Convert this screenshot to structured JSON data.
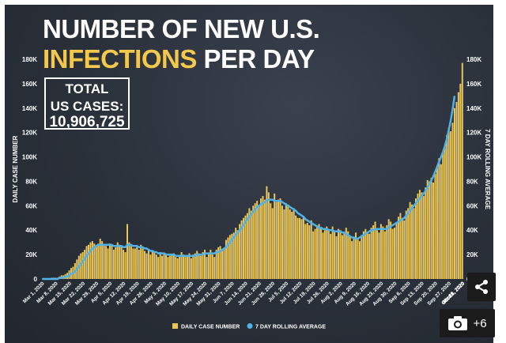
{
  "title": {
    "line1": "NUMBER OF NEW U.S.",
    "line2_highlight": "INFECTIONS",
    "line2_rest": "PER DAY"
  },
  "total_box": {
    "label_line1": "TOTAL",
    "label_line2": "US CASES:",
    "value": "10,906,725"
  },
  "controls": {
    "share_icon": "share-icon",
    "gallery_icon": "camera-icon",
    "gallery_count": "+6"
  },
  "colors": {
    "bars": "#e8c55a",
    "line": "#4fb3e8",
    "background": "#2a3039",
    "highlight": "#f2c94c"
  },
  "chart_data": {
    "type": "bar",
    "ylabel_left": "DAILY CASE NUMBER",
    "ylabel_right": "7 DAY ROLLING AVERAGE",
    "ylim": [
      0,
      180000
    ],
    "yticks": [
      "0",
      "20K",
      "40K",
      "60K",
      "80K",
      "100K",
      "120K",
      "140K",
      "160K",
      "180K"
    ],
    "xticks": [
      "Mar 1, 2020",
      "Mar 8, 2020",
      "Mar 15, 2020",
      "Mar 22, 2020",
      "Mar 29, 2020",
      "Apr 5, 2020",
      "Apr 12, 2020",
      "Apr 19, 2020",
      "Apr 26, 2020",
      "May 3, 2020",
      "May 10, 2020",
      "May 17, 2020",
      "May 24, 2020",
      "May 31, 2020",
      "Jun 7, 2020",
      "Jun 14, 2020",
      "Jun 21, 2020",
      "Jun 28, 2020",
      "Jul 5, 2020",
      "Jul 12, 2020",
      "Jul 19, 2020",
      "Jul 26, 2020",
      "Aug 2, 2020",
      "Aug 9, 2020",
      "Aug 16, 2020",
      "Aug 23, 2020",
      "Aug 30, 2020",
      "Sep 6, 2020",
      "Sep 13, 2020",
      "Sep 20, 2020",
      "Sep 27, 2020",
      "Oct 4, 2020",
      "Oct 11, 2020",
      "Oct 18, 2020",
      "Oct 25, 2020",
      "Nov 1, 2020",
      "Nov 8, 2020"
    ],
    "legend": [
      "DAILY CASE NUMBER",
      "7 DAY ROLLING AVERAGE"
    ],
    "legend_position": "bottom-center",
    "series": [
      {
        "name": "DAILY CASE NUMBER",
        "type": "bar",
        "values": [
          0,
          0,
          0,
          0,
          0,
          1000,
          1000,
          1000,
          1000,
          2000,
          3000,
          3000,
          4000,
          5000,
          7000,
          9000,
          10000,
          13000,
          16000,
          19000,
          21000,
          22000,
          24000,
          27000,
          28000,
          30000,
          31000,
          29000,
          27000,
          29000,
          33000,
          31000,
          28000,
          27000,
          25000,
          29000,
          28000,
          24000,
          26000,
          30000,
          28000,
          27000,
          24000,
          22000,
          45000,
          30000,
          27000,
          25000,
          25000,
          26000,
          24000,
          28000,
          25000,
          23000,
          21000,
          24000,
          20000,
          23000,
          22000,
          20000,
          18000,
          22000,
          19000,
          21000,
          20000,
          18000,
          19000,
          20000,
          21000,
          18000,
          17000,
          19000,
          22000,
          20000,
          18000,
          19000,
          21000,
          17000,
          20000,
          21000,
          23000,
          21000,
          19000,
          22000,
          24000,
          18000,
          21000,
          24000,
          20000,
          18000,
          24000,
          26000,
          27000,
          23000,
          25000,
          32000,
          34000,
          36000,
          37000,
          38000,
          42000,
          40000,
          45000,
          48000,
          50000,
          52000,
          54000,
          58000,
          56000,
          60000,
          62000,
          64000,
          60000,
          66000,
          68000,
          65000,
          76000,
          71000,
          62000,
          58000,
          70000,
          63000,
          65000,
          66000,
          60000,
          57000,
          62000,
          61000,
          57000,
          55000,
          58000,
          52000,
          50000,
          50000,
          49000,
          51000,
          45000,
          46000,
          44000,
          48000,
          39000,
          41000,
          43000,
          45000,
          42000,
          38000,
          40000,
          43000,
          41000,
          37000,
          43000,
          39000,
          35000,
          41000,
          40000,
          36000,
          38000,
          42000,
          39000,
          35000,
          31000,
          34000,
          38000,
          33000,
          31000,
          36000,
          39000,
          41000,
          38000,
          37000,
          42000,
          44000,
          47000,
          40000,
          38000,
          45000,
          43000,
          39000,
          44000,
          49000,
          47000,
          41000,
          42000,
          46000,
          51000,
          54000,
          50000,
          48000,
          56000,
          58000,
          63000,
          61000,
          58000,
          66000,
          70000,
          73000,
          71000,
          68000,
          75000,
          81000,
          80000,
          83000,
          79000,
          86000,
          91000,
          99000,
          94000,
          104000,
          109000,
          118000,
          124000,
          121000,
          128000,
          140000,
          145000,
          153000,
          160000,
          177000
        ]
      },
      {
        "name": "7 DAY ROLLING AVERAGE",
        "type": "line",
        "values": [
          0,
          0,
          0,
          0,
          0,
          0,
          0,
          0,
          0,
          1000,
          1000,
          1000,
          2000,
          2000,
          3000,
          4000,
          5000,
          6000,
          8000,
          10000,
          12000,
          14000,
          17000,
          19000,
          21000,
          23000,
          25000,
          26000,
          27000,
          28000,
          28000,
          28000,
          28000,
          28000,
          28000,
          28000,
          28000,
          27000,
          27000,
          27000,
          27000,
          27000,
          26000,
          26000,
          28000,
          28000,
          28000,
          27000,
          27000,
          27000,
          26000,
          26000,
          26000,
          25000,
          25000,
          24000,
          23000,
          23000,
          22000,
          22000,
          21000,
          21000,
          21000,
          21000,
          20000,
          20000,
          20000,
          20000,
          20000,
          19000,
          19000,
          19000,
          19000,
          19000,
          19000,
          19000,
          19000,
          19000,
          19000,
          19000,
          20000,
          20000,
          20000,
          20000,
          21000,
          21000,
          21000,
          21000,
          21000,
          21000,
          22000,
          22000,
          23000,
          24000,
          25000,
          26000,
          28000,
          30000,
          32000,
          34000,
          36000,
          38000,
          40000,
          42000,
          44000,
          47000,
          49000,
          51000,
          53000,
          55000,
          57000,
          59000,
          60000,
          61000,
          62000,
          63000,
          64000,
          65000,
          65000,
          65000,
          64000,
          64000,
          64000,
          64000,
          63000,
          62000,
          61000,
          60000,
          59000,
          58000,
          57000,
          56000,
          54000,
          53000,
          52000,
          51000,
          49000,
          48000,
          47000,
          46000,
          45000,
          44000,
          43000,
          42000,
          42000,
          41000,
          41000,
          41000,
          40000,
          40000,
          40000,
          39000,
          39000,
          39000,
          39000,
          38000,
          38000,
          37000,
          36000,
          35000,
          34000,
          34000,
          33000,
          33000,
          34000,
          35000,
          36000,
          37000,
          38000,
          39000,
          40000,
          40000,
          41000,
          41000,
          41000,
          41000,
          41000,
          41000,
          41000,
          42000,
          43000,
          44000,
          45000,
          46000,
          47000,
          48000,
          49000,
          50000,
          52000,
          54000,
          56000,
          58000,
          60000,
          62000,
          64000,
          66000,
          68000,
          70000,
          72000,
          75000,
          78000,
          81000,
          84000,
          88000,
          92000,
          96000,
          100000,
          104000,
          109000,
          115000,
          122000,
          130000,
          139000,
          150000
        ]
      }
    ]
  }
}
